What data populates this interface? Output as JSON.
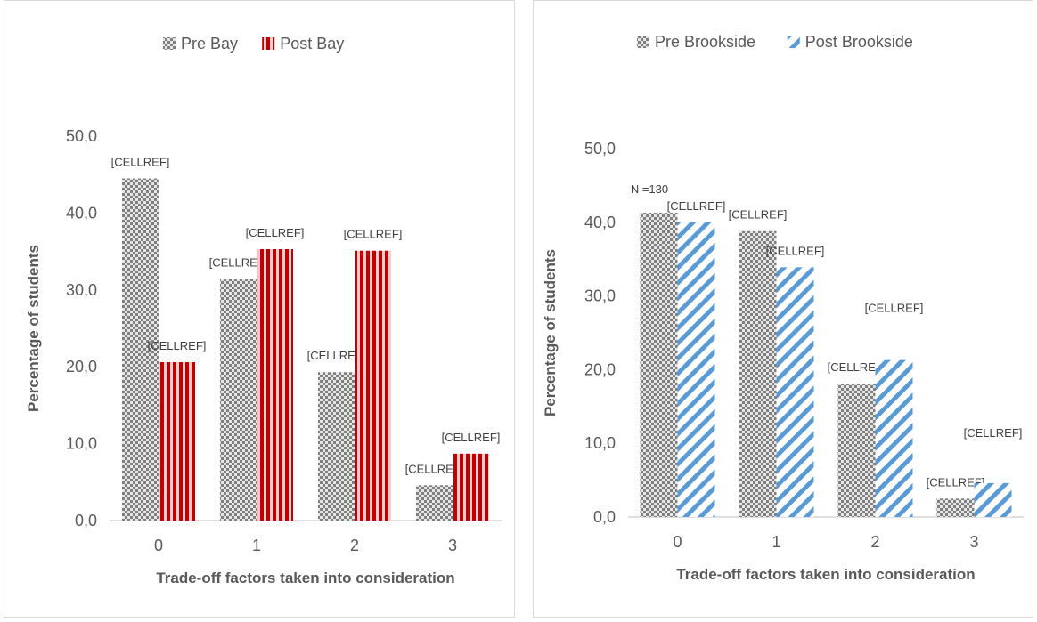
{
  "chart_data": [
    {
      "type": "bar",
      "categories": [
        "0",
        "1",
        "2",
        "3"
      ],
      "series": [
        {
          "name": "Pre Bay",
          "values": [
            44.5,
            31.4,
            19.3,
            4.6
          ],
          "labels": [
            "[CELLREF]",
            "[CELLREF]",
            "[CELLREF]",
            "[CELLREF]"
          ],
          "pattern": "checker",
          "color": "#7f7f7f"
        },
        {
          "name": "Post Bay",
          "values": [
            20.6,
            35.3,
            35.1,
            8.7
          ],
          "labels": [
            "[CELLREF]",
            "[CELLREF]",
            "[CELLREF]",
            "[CELLREF]"
          ],
          "pattern": "vstripe",
          "color": "#c00000"
        }
      ],
      "xlabel": "Trade-off factors taken into consideration",
      "ylabel": "Percentage of students",
      "ylim": [
        0,
        50
      ],
      "yticks": [
        "0,0",
        "10,0",
        "20,0",
        "30,0",
        "40,0",
        "50,0"
      ],
      "legend": "top-center",
      "grid": false,
      "annotations": []
    },
    {
      "type": "bar",
      "categories": [
        "0",
        "1",
        "2",
        "3"
      ],
      "series": [
        {
          "name": "Pre Brookside",
          "values": [
            41.3,
            38.8,
            18.1,
            2.5
          ],
          "labels": [
            "",
            "[CELLREF]",
            "[CELLREF]",
            "[CELLREF]"
          ],
          "pattern": "checker",
          "color": "#7f7f7f"
        },
        {
          "name": "Post Brookside",
          "values": [
            40.0,
            33.9,
            21.3,
            4.6
          ],
          "labels": [
            "[CELLREF]",
            "[CELLREF]",
            "[CELLREF]",
            "[CELLREF]"
          ],
          "pattern": "diagstripe",
          "color": "#5b9bd5"
        }
      ],
      "xlabel": "Trade-off factors taken into consideration",
      "ylabel": "Percentage of students",
      "ylim": [
        0,
        50
      ],
      "yticks": [
        "0,0",
        "10,0",
        "20,0",
        "30,0",
        "40,0",
        "50,0"
      ],
      "legend": "top-center",
      "grid": false,
      "annotations": [
        "N =130"
      ]
    }
  ]
}
